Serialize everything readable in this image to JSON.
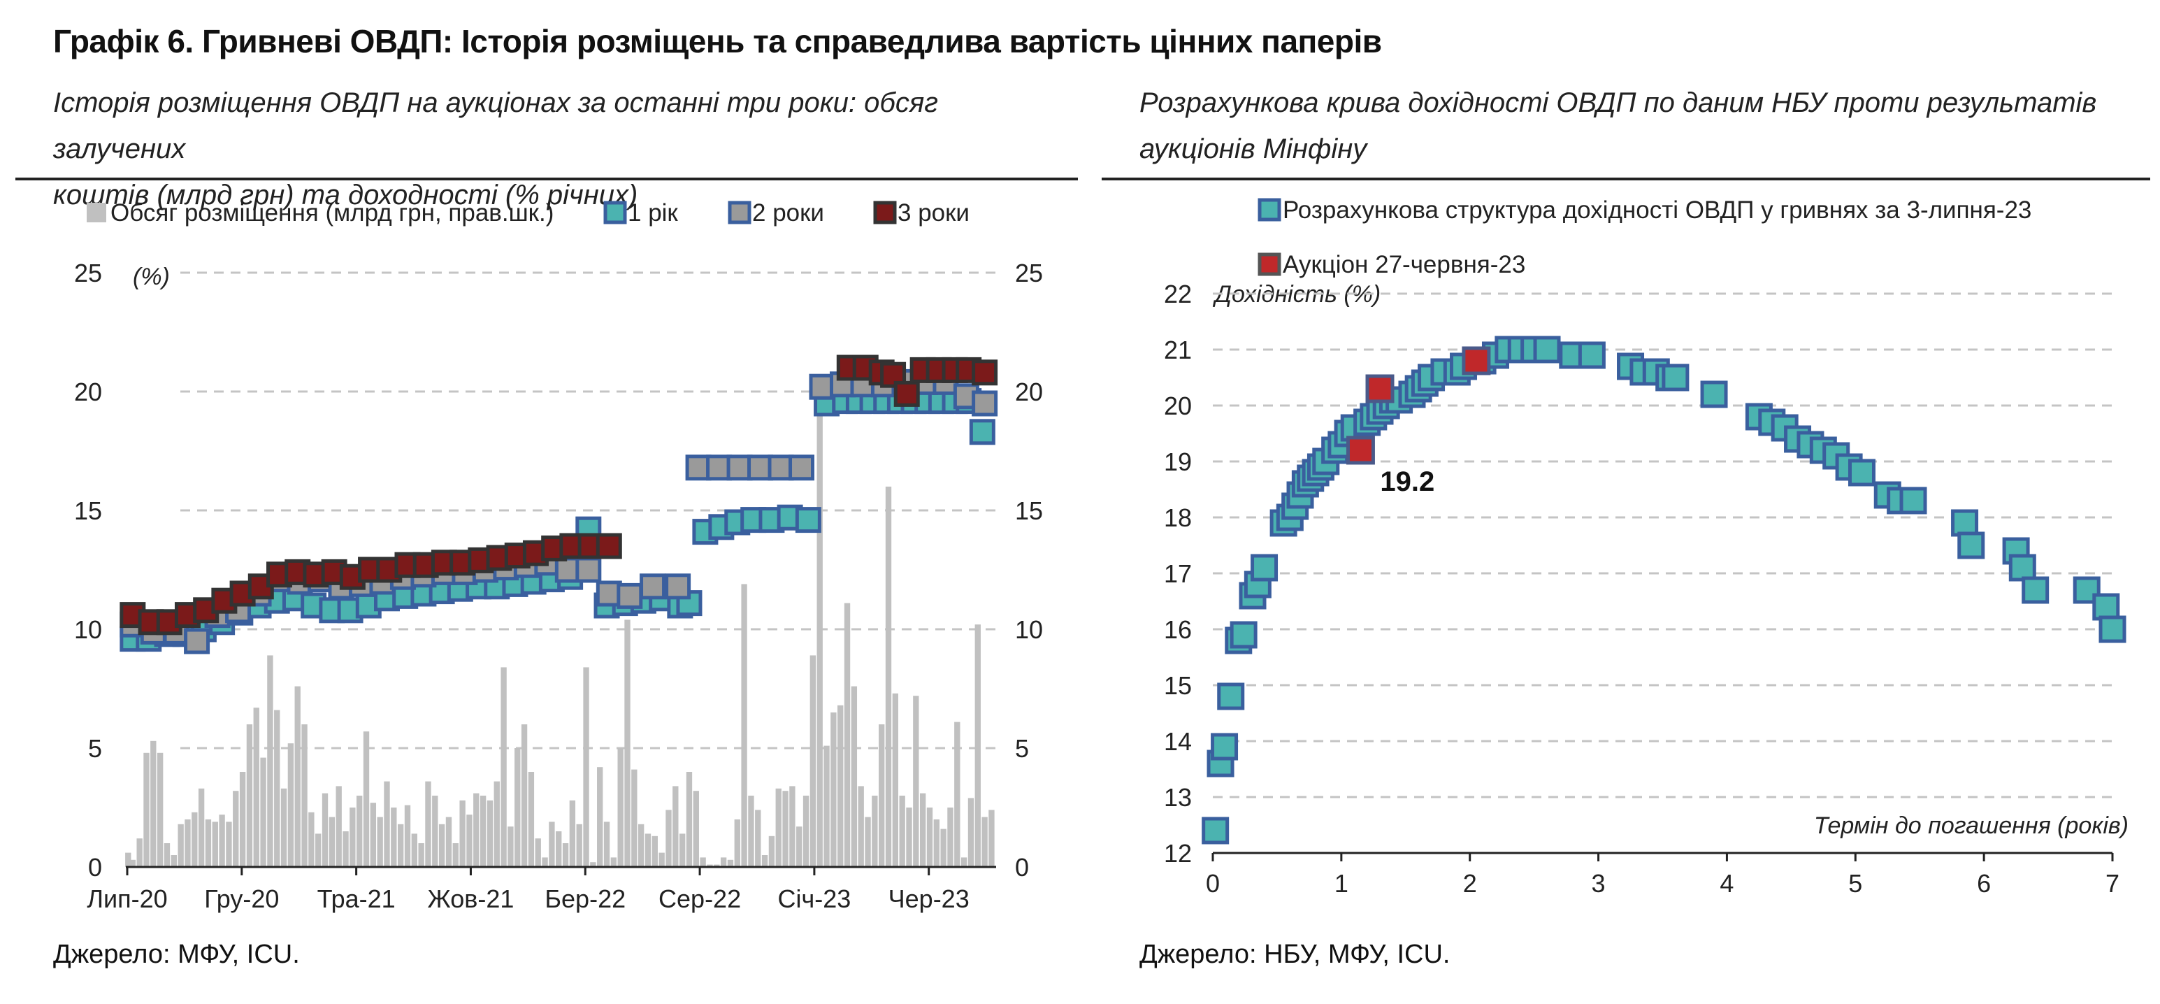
{
  "title": "Графік 6. Гривневі ОВДП: Історія розміщень та справедлива вартість цінних паперів",
  "left": {
    "subtitle_line1": "Історія розміщення ОВДП на аукціонах за останні три роки: обсяг залучених",
    "subtitle_line2": "коштів (млрд грн) та доходності (% річних)",
    "source": "Джерело: МФУ, ICU.",
    "legend": [
      {
        "label": "Обсяг розміщення (млрд грн, прав.шк.)",
        "color": "#c0c0c0"
      },
      {
        "label": "1 рік",
        "color": "#4bb3b0"
      },
      {
        "label": "2 роки",
        "color": "#9a9a9a"
      },
      {
        "label": "3 роки",
        "color": "#7b1a1a"
      }
    ]
  },
  "right": {
    "subtitle_line1": "Розрахункова крива дохідності ОВДП по даним НБУ проти результатів",
    "subtitle_line2": "аукціонів Мінфіну",
    "source": "Джерело: НБУ, МФУ, ICU.",
    "legend": [
      {
        "label": "Розрахункова структура дохідності ОВДП у гривнях за 3-липня-23",
        "color": "#4bb3b0"
      },
      {
        "label": "Аукціон 27-червня-23",
        "color": "#c0282a"
      }
    ]
  },
  "chart_data": [
    {
      "type": "bar+scatter",
      "title": "Історія розміщення ОВДП на аукціонах за останні три роки",
      "ylabel_left": "(%)",
      "ylim_left": [
        0,
        25
      ],
      "ylim_right": [
        0,
        25
      ],
      "yticks": [
        "0",
        "5",
        "10",
        "15",
        "20",
        "25"
      ],
      "xticks": [
        "Лип-20",
        "Гру-20",
        "Тра-21",
        "Жов-21",
        "Бер-22",
        "Сер-22",
        "Січ-23",
        "Чер-23"
      ],
      "x_range_months": [
        0,
        38
      ],
      "bar_series": {
        "name": "Обсяг розміщення (млрд грн, прав.шк.)",
        "x_months": [
          0.1,
          0.3,
          0.6,
          0.9,
          1.2,
          1.5,
          1.8,
          2.1,
          2.4,
          2.7,
          3.0,
          3.3,
          3.6,
          3.9,
          4.2,
          4.5,
          4.8,
          5.1,
          5.4,
          5.7,
          6.0,
          6.3,
          6.6,
          6.9,
          7.2,
          7.5,
          7.8,
          8.1,
          8.4,
          8.7,
          9.0,
          9.3,
          9.6,
          9.9,
          10.2,
          10.5,
          10.8,
          11.1,
          11.4,
          11.7,
          12.0,
          12.3,
          12.6,
          12.9,
          13.2,
          13.5,
          13.8,
          14.1,
          14.4,
          14.7,
          15.0,
          15.3,
          15.6,
          15.9,
          16.2,
          16.5,
          16.8,
          17.1,
          17.4,
          17.7,
          18.0,
          18.3,
          18.6,
          18.9,
          19.2,
          19.5,
          19.8,
          20.1,
          20.4,
          20.7,
          21.0,
          21.3,
          21.6,
          21.9,
          22.2,
          22.5,
          22.8,
          23.1,
          23.4,
          23.7,
          24.0,
          24.3,
          24.6,
          24.9,
          25.2,
          25.5,
          25.8,
          26.1,
          26.4,
          26.7,
          27.0,
          27.3,
          27.6,
          27.9,
          28.2,
          28.5,
          28.8,
          29.1,
          29.4,
          29.7,
          30.0,
          30.3,
          30.6,
          30.9,
          31.2,
          31.5,
          31.8,
          32.1,
          32.4,
          32.7,
          33.0,
          33.3,
          33.6,
          33.9,
          34.2,
          34.5,
          34.8,
          35.1,
          35.4,
          35.7,
          36.0,
          36.3,
          36.6,
          36.9,
          37.2,
          37.5,
          37.8
        ],
        "values": [
          0.6,
          0.3,
          1.2,
          4.8,
          5.3,
          4.8,
          1.0,
          0.5,
          1.8,
          2.0,
          2.3,
          3.3,
          2.0,
          1.9,
          2.2,
          1.9,
          3.2,
          4.0,
          6.0,
          6.7,
          4.6,
          8.9,
          6.6,
          3.3,
          5.2,
          7.6,
          6.0,
          2.3,
          1.4,
          3.1,
          2.1,
          3.4,
          1.5,
          2.5,
          3.0,
          5.7,
          2.7,
          2.1,
          3.6,
          2.5,
          1.8,
          2.6,
          1.4,
          1.0,
          3.6,
          3.0,
          1.8,
          2.1,
          1.0,
          2.8,
          2.2,
          3.1,
          3.0,
          2.8,
          3.6,
          8.4,
          1.7,
          5.0,
          6.0,
          4.0,
          1.2,
          0.4,
          1.9,
          1.5,
          1.0,
          2.8,
          1.8,
          8.4,
          0.2,
          4.2,
          1.9,
          0.4,
          5.0,
          10.4,
          4.1,
          1.8,
          1.4,
          1.3,
          0.6,
          2.4,
          3.4,
          1.4,
          4.0,
          3.2,
          0.4,
          0.1,
          0.1,
          0.4,
          0.3,
          2.0,
          11.9,
          3.0,
          2.4,
          0.5,
          1.3,
          3.3,
          3.2,
          3.4,
          1.7,
          3.0,
          8.9,
          20.3,
          5.1,
          6.5,
          6.8,
          11.1,
          7.6,
          3.4,
          2.1,
          3.0,
          6.0,
          16.0,
          7.3,
          3.0,
          2.5,
          7.2,
          3.1,
          2.5,
          2.0,
          1.6,
          2.5,
          6.1,
          0.4,
          2.9,
          10.2,
          2.1,
          2.4
        ]
      },
      "series": [
        {
          "name": "1 рік",
          "x_months": [
            0.3,
            1.0,
            1.8,
            2.6,
            3.4,
            4.2,
            5.0,
            5.8,
            6.6,
            7.4,
            8.2,
            9.0,
            9.8,
            10.6,
            11.4,
            12.2,
            13.0,
            13.8,
            14.6,
            15.4,
            16.2,
            17.0,
            17.8,
            18.6,
            19.4,
            20.2,
            21.0,
            21.8,
            22.6,
            23.4,
            24.2,
            24.6,
            25.3,
            26.0,
            26.7,
            27.4,
            28.2,
            29.0,
            29.8,
            30.6,
            31.4,
            32.0,
            32.6,
            33.2,
            33.8,
            34.4,
            35.0,
            35.6,
            36.2,
            36.8,
            37.4
          ],
          "values": [
            9.6,
            9.6,
            9.8,
            9.8,
            10.0,
            10.3,
            10.7,
            11.0,
            11.2,
            11.3,
            11.0,
            10.8,
            10.8,
            11.0,
            11.3,
            11.4,
            11.5,
            11.6,
            11.7,
            11.8,
            11.8,
            11.9,
            12.0,
            12.1,
            12.2,
            14.2,
            11.0,
            11.1,
            11.2,
            11.3,
            11.0,
            11.1,
            14.1,
            14.3,
            14.5,
            14.6,
            14.6,
            14.7,
            14.6,
            19.5,
            19.6,
            19.6,
            19.6,
            19.6,
            19.6,
            19.6,
            19.6,
            19.6,
            19.6,
            19.6,
            18.3
          ]
        },
        {
          "name": "2 роки",
          "x_months": [
            0.3,
            1.2,
            2.2,
            3.1,
            4.0,
            4.9,
            5.8,
            6.7,
            7.6,
            8.5,
            9.4,
            10.3,
            11.2,
            12.1,
            13.0,
            13.9,
            14.8,
            15.7,
            16.6,
            17.5,
            18.4,
            19.3,
            20.2,
            21.1,
            22.0,
            23.0,
            24.1,
            25.0,
            25.9,
            26.8,
            27.7,
            28.6,
            29.5,
            30.4,
            31.3,
            32.2,
            33.1,
            34.0,
            34.9,
            35.8,
            36.7,
            37.5
          ],
          "values": [
            10.2,
            9.9,
            9.9,
            9.5,
            10.6,
            10.8,
            11.5,
            12.1,
            12.0,
            12.1,
            11.8,
            11.9,
            12.0,
            12.2,
            12.3,
            12.4,
            12.4,
            12.5,
            12.6,
            12.7,
            12.8,
            12.5,
            12.5,
            11.5,
            11.4,
            11.8,
            11.8,
            16.8,
            16.8,
            16.8,
            16.8,
            16.8,
            16.8,
            20.2,
            20.3,
            20.3,
            20.3,
            20.4,
            20.4,
            20.4,
            19.8,
            19.5
          ]
        },
        {
          "name": "3 роки",
          "x_months": [
            0.3,
            1.1,
            1.9,
            2.7,
            3.5,
            4.3,
            5.1,
            5.9,
            6.7,
            7.5,
            8.3,
            9.1,
            9.9,
            10.7,
            11.5,
            12.3,
            13.1,
            13.9,
            14.7,
            15.5,
            16.3,
            17.1,
            17.9,
            18.7,
            19.5,
            20.3,
            21.1,
            31.6,
            32.3,
            33.0,
            33.5,
            34.1,
            34.8,
            35.5,
            36.2,
            36.8,
            37.5
          ],
          "values": [
            10.6,
            10.3,
            10.3,
            10.6,
            10.8,
            11.2,
            11.5,
            11.8,
            12.3,
            12.4,
            12.3,
            12.4,
            12.2,
            12.5,
            12.5,
            12.7,
            12.7,
            12.8,
            12.8,
            12.9,
            13.0,
            13.1,
            13.2,
            13.4,
            13.5,
            13.5,
            13.5,
            21.0,
            21.0,
            20.8,
            20.7,
            19.9,
            20.9,
            20.9,
            20.9,
            20.9,
            20.8
          ]
        }
      ]
    },
    {
      "type": "scatter",
      "title": "Розрахункова крива дохідності ОВДП по даним НБУ проти результатів аукціонів Мінфіну",
      "xlabel": "Термін до погашення (років)",
      "ylabel": "Дохідність (%)",
      "xlim": [
        0,
        7
      ],
      "ylim": [
        12,
        22
      ],
      "xticks": [
        "0",
        "1",
        "2",
        "3",
        "4",
        "5",
        "6",
        "7"
      ],
      "yticks": [
        "12",
        "13",
        "14",
        "15",
        "16",
        "17",
        "18",
        "19",
        "20",
        "21",
        "22"
      ],
      "annotation": "19.2",
      "series": [
        {
          "name": "Розрахункова структура дохідності ОВДП у гривнях за 3-липня-23",
          "x": [
            0.02,
            0.06,
            0.09,
            0.14,
            0.2,
            0.24,
            0.31,
            0.35,
            0.4,
            0.55,
            0.6,
            0.64,
            0.68,
            0.72,
            0.76,
            0.8,
            0.84,
            0.88,
            0.95,
            1.0,
            1.05,
            1.1,
            1.2,
            1.25,
            1.3,
            1.35,
            1.4,
            1.45,
            1.55,
            1.6,
            1.65,
            1.7,
            1.8,
            1.9,
            1.95,
            2.1,
            2.2,
            2.3,
            2.4,
            2.5,
            2.6,
            2.8,
            2.95,
            3.25,
            3.35,
            3.45,
            3.55,
            3.6,
            3.9,
            4.25,
            4.35,
            4.45,
            4.55,
            4.65,
            4.75,
            4.85,
            4.95,
            5.05,
            5.25,
            5.35,
            5.45,
            5.85,
            5.9,
            6.25,
            6.3,
            6.4,
            6.8,
            6.95,
            7.0
          ],
          "values": [
            12.4,
            13.6,
            13.9,
            14.8,
            15.8,
            15.9,
            16.6,
            16.8,
            17.1,
            17.9,
            18.0,
            18.2,
            18.4,
            18.6,
            18.7,
            18.8,
            18.9,
            19.0,
            19.2,
            19.3,
            19.5,
            19.6,
            19.7,
            19.8,
            19.9,
            20.0,
            20.1,
            20.1,
            20.2,
            20.3,
            20.4,
            20.5,
            20.6,
            20.6,
            20.7,
            20.8,
            20.9,
            21.0,
            21.0,
            21.0,
            21.0,
            20.9,
            20.9,
            20.7,
            20.6,
            20.6,
            20.5,
            20.5,
            20.2,
            19.8,
            19.7,
            19.6,
            19.4,
            19.3,
            19.2,
            19.1,
            18.9,
            18.8,
            18.4,
            18.3,
            18.3,
            17.9,
            17.5,
            17.4,
            17.1,
            16.7,
            16.7,
            16.4,
            16.0
          ]
        },
        {
          "name": "Аукціон 27-червня-23",
          "x": [
            1.15,
            1.3,
            2.05
          ],
          "values": [
            19.2,
            20.3,
            20.8
          ]
        }
      ]
    }
  ]
}
